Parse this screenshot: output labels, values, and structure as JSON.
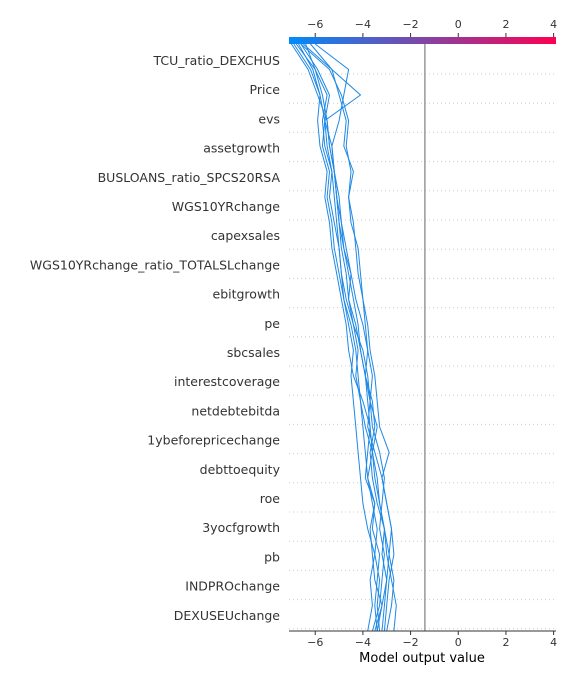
{
  "chart_data": {
    "type": "line",
    "title": "",
    "xlabel": "Model output value",
    "xlim": [
      -7.1,
      4.1
    ],
    "base_value": -1.4,
    "ticks": [
      -6,
      -4,
      -2,
      0,
      2,
      4
    ],
    "tick_labels": [
      "−6",
      "−4",
      "−2",
      "0",
      "2",
      "4"
    ],
    "features": [
      "TCU_ratio_DEXCHUS",
      "Price",
      "evs",
      "assetgrowth",
      "BUSLOANS_ratio_SPCS20RSA",
      "WGS10YRchange",
      "capexsales",
      "WGS10YRchange_ratio_TOTALSLchange",
      "ebitgrowth",
      "pe",
      "sbcsales",
      "interestcoverage",
      "netdebtebitda",
      "1ybeforepricechange",
      "debttoequity",
      "roe",
      "3yocfgrowth",
      "pb",
      "INDPROchange",
      "DEXUSEUchange"
    ],
    "gradient_colors": [
      "#008bfb",
      "#ff0052"
    ],
    "line_color": "#1e88e5",
    "series": [
      {
        "values": [
          -3.1,
          -3.0,
          -2.9,
          -2.7,
          -2.8,
          -3.0,
          -3.2,
          -3.5,
          -3.8,
          -3.7,
          -3.9,
          -4.1,
          -4.3,
          -4.6,
          -4.5,
          -4.8,
          -5.0,
          -5.1,
          -5.2,
          -5.4,
          -5.5,
          -5.9,
          -6.3,
          -7.0
        ]
      },
      {
        "values": [
          -3.2,
          -3.1,
          -3.0,
          -3.2,
          -3.1,
          -3.3,
          -3.5,
          -3.6,
          -3.4,
          -3.7,
          -3.8,
          -4.0,
          -4.4,
          -4.7,
          -4.9,
          -5.0,
          -5.2,
          -5.4,
          -5.3,
          -5.6,
          -5.7,
          -5.5,
          -6.0,
          -6.8
        ]
      },
      {
        "values": [
          -3.3,
          -3.4,
          -3.3,
          -3.5,
          -3.4,
          -3.6,
          -3.8,
          -3.6,
          -3.9,
          -4.1,
          -4.2,
          -4.3,
          -4.5,
          -4.8,
          -5.0,
          -5.2,
          -5.3,
          -5.5,
          -5.4,
          -5.7,
          -5.6,
          -5.8,
          -6.1,
          -6.7
        ]
      },
      {
        "values": [
          -3.4,
          -3.5,
          -3.4,
          -3.3,
          -3.6,
          -3.5,
          -3.9,
          -3.8,
          -3.7,
          -4.0,
          -4.4,
          -4.6,
          -4.7,
          -4.9,
          -5.1,
          -5.3,
          -5.4,
          -5.6,
          -5.5,
          -5.8,
          -5.9,
          -5.8,
          -6.2,
          -6.9
        ]
      },
      {
        "values": [
          -3.6,
          -3.3,
          -3.2,
          -3.1,
          -3.3,
          -3.2,
          -3.1,
          -3.3,
          -3.6,
          -3.7,
          -3.6,
          -3.8,
          -3.9,
          -4.0,
          -4.2,
          -4.3,
          -4.4,
          -4.6,
          -4.5,
          -4.7,
          -4.6,
          -4.9,
          -5.4,
          -6.6
        ]
      },
      {
        "values": [
          -3.0,
          -2.8,
          -2.7,
          -2.9,
          -2.8,
          -3.0,
          -3.2,
          -2.9,
          -3.3,
          -3.4,
          -3.5,
          -3.7,
          -3.8,
          -4.0,
          -4.1,
          -4.2,
          -4.5,
          -4.6,
          -4.4,
          -4.8,
          -4.7,
          -5.0,
          -5.3,
          -6.5
        ]
      },
      {
        "values": [
          -3.8,
          -3.6,
          -3.7,
          -3.5,
          -3.8,
          -4.0,
          -4.1,
          -4.2,
          -4.3,
          -4.4,
          -4.5,
          -4.4,
          -4.6,
          -4.8,
          -4.9,
          -5.0,
          -5.1,
          -5.2,
          -5.3,
          -5.5,
          -5.6,
          -5.4,
          -5.9,
          -6.6
        ]
      },
      {
        "values": [
          -3.5,
          -3.2,
          -3.0,
          -2.9,
          -3.1,
          -3.4,
          -3.6,
          -3.7,
          -3.5,
          -3.6,
          -3.9,
          -3.8,
          -4.0,
          -4.3,
          -4.5,
          -4.7,
          -4.9,
          -5.1,
          -5.2,
          -5.3,
          -5.0,
          -4.8,
          -4.6,
          -6.0
        ]
      },
      {
        "values": [
          -3.4,
          -3.2,
          -3.5,
          -3.6,
          -3.7,
          -3.5,
          -3.8,
          -3.9,
          -4.0,
          -4.1,
          -4.3,
          -4.2,
          -4.4,
          -4.6,
          -4.7,
          -4.9,
          -5.0,
          -5.1,
          -5.2,
          -5.3,
          -5.6,
          -4.1,
          -5.3,
          -6.2
        ]
      },
      {
        "values": [
          -2.7,
          -2.6,
          -2.8,
          -3.0,
          -3.1,
          -3.3,
          -3.4,
          -3.6,
          -3.7,
          -3.8,
          -3.9,
          -4.1,
          -4.2,
          -4.4,
          -4.6,
          -4.8,
          -4.9,
          -5.0,
          -5.2,
          -5.4,
          -5.5,
          -5.7,
          -6.0,
          -6.4
        ]
      }
    ]
  }
}
